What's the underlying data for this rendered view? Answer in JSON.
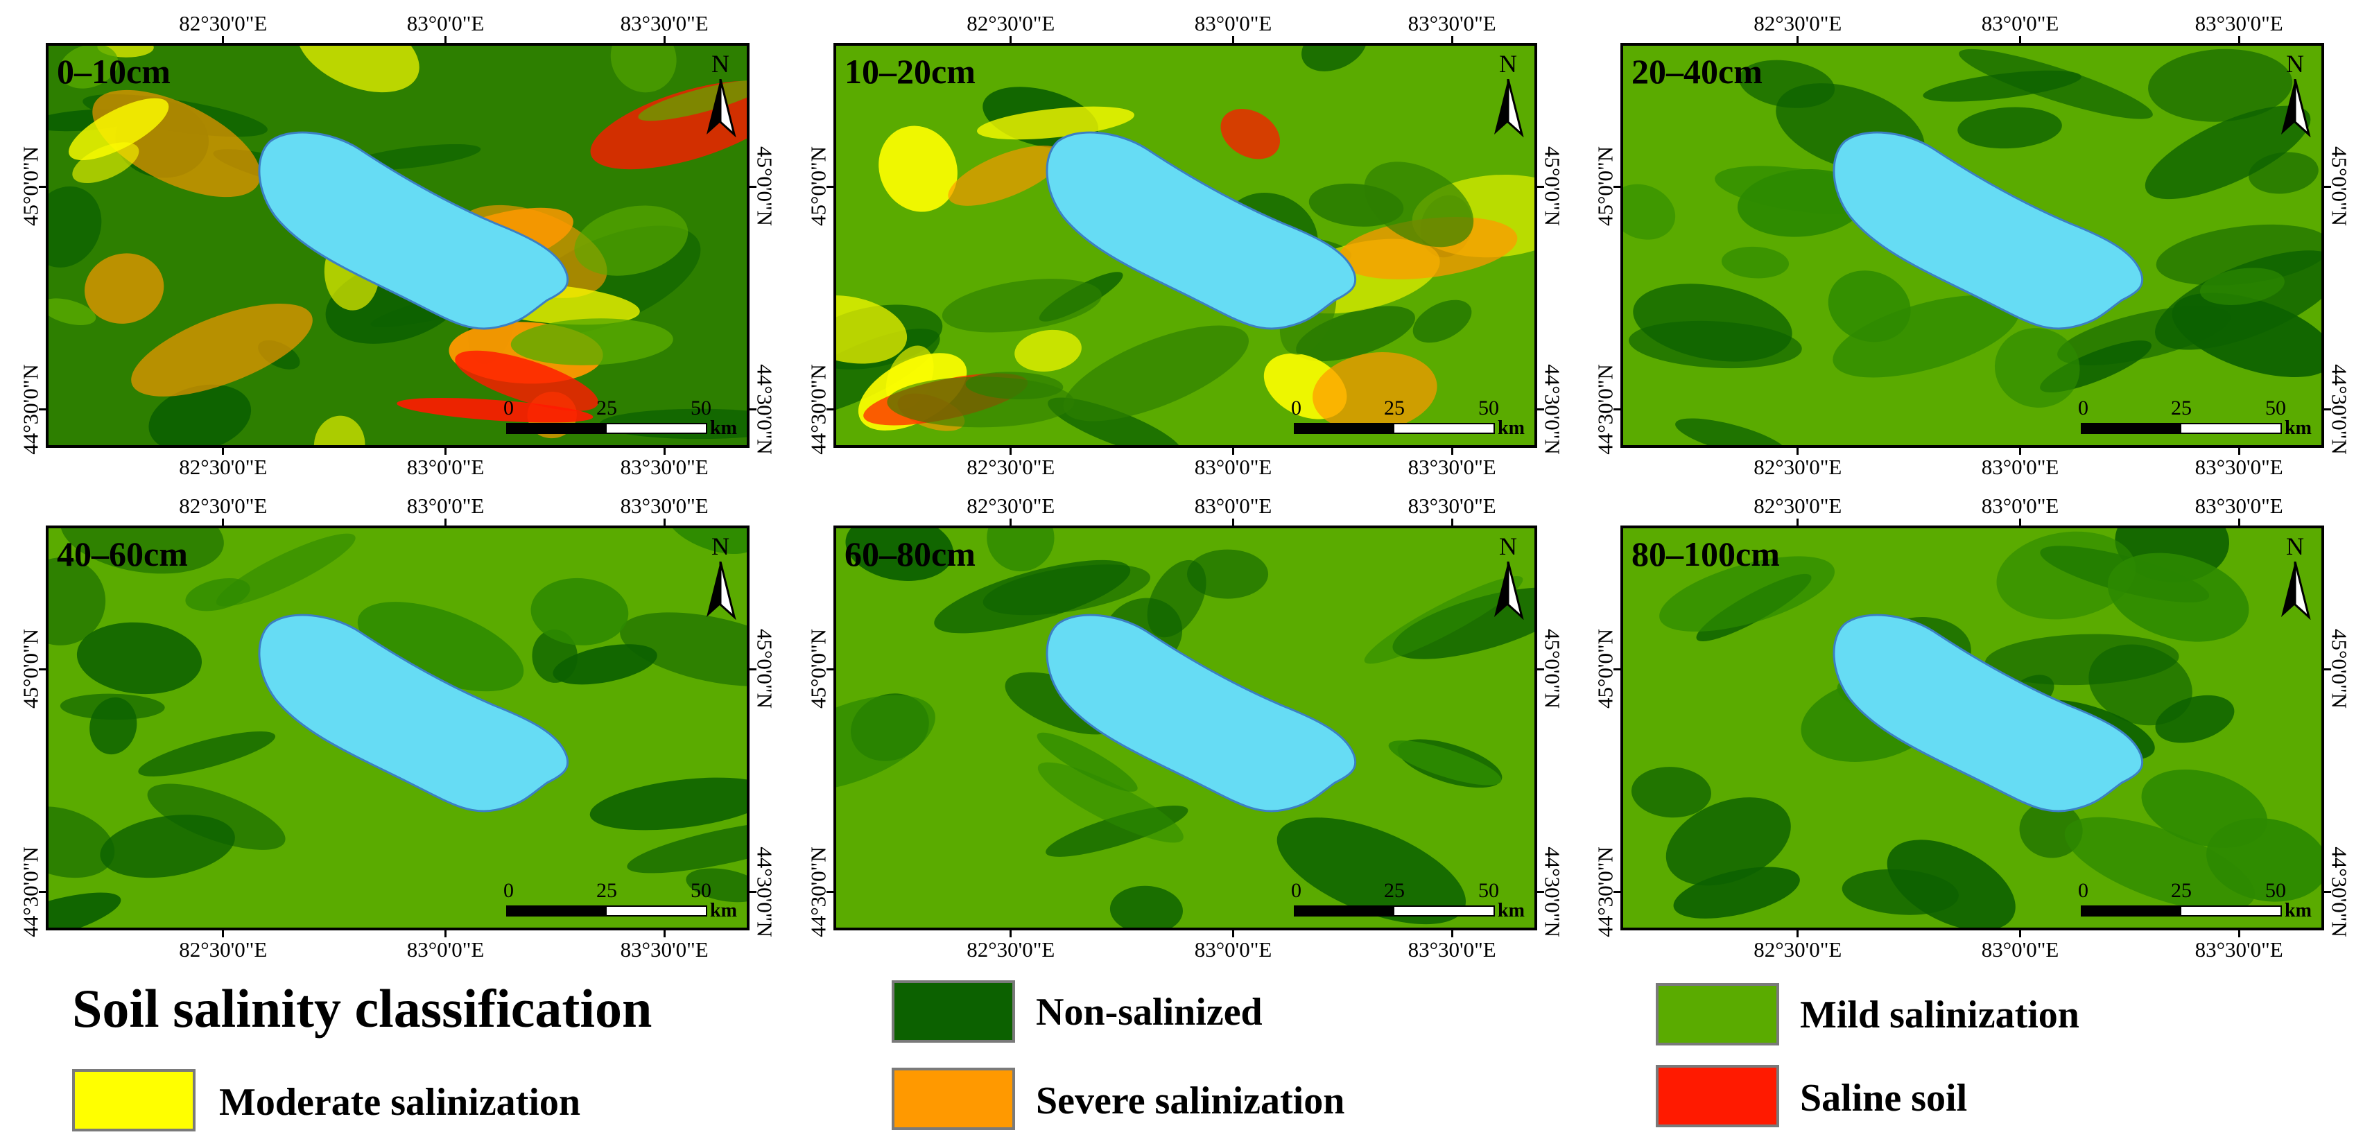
{
  "panels": [
    {
      "label": "0–10cm",
      "theme": "0"
    },
    {
      "label": "10–20cm",
      "theme": "1"
    },
    {
      "label": "20–40cm",
      "theme": "2"
    },
    {
      "label": "40–60cm",
      "theme": "3"
    },
    {
      "label": "60–80cm",
      "theme": "4"
    },
    {
      "label": "80–100cm",
      "theme": "5"
    }
  ],
  "axes": {
    "lon_labels": [
      "82°30'0\"E",
      "83°0'0\"E",
      "83°30'0\"E"
    ],
    "lat_labels": [
      "45°0'0\"N",
      "44°30'0\"N"
    ]
  },
  "north_arrow": {
    "letter": "N"
  },
  "scalebar": {
    "ticks": [
      "0",
      "25",
      "50"
    ],
    "unit": "km"
  },
  "legend": {
    "title": "Soil salinity classification",
    "items": [
      {
        "label": "Non-salinized",
        "color": "#0c6100"
      },
      {
        "label": "Mild salinization",
        "color": "#5aab00"
      },
      {
        "label": "Moderate salinization",
        "color": "#ffff00"
      },
      {
        "label": "Severe salinization",
        "color": "#ff9900"
      },
      {
        "label": "Saline soil",
        "color": "#ff1a00"
      }
    ]
  },
  "colors": {
    "lake": "#66dcf4",
    "non_salinized": "#0c6100",
    "mild": "#5aab00",
    "moderate": "#ffff00",
    "severe": "#ff9900",
    "saline": "#ff1a00"
  }
}
